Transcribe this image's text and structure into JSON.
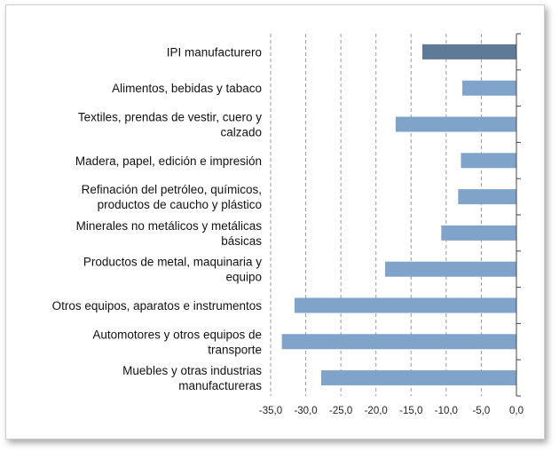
{
  "chart_data": {
    "type": "bar",
    "orientation": "horizontal",
    "categories": [
      [
        "IPI manufacturero"
      ],
      [
        "Alimentos, bebidas y tabaco"
      ],
      [
        "Textiles, prendas de vestir, cuero y",
        "calzado"
      ],
      [
        "Madera, papel, edición e impresión"
      ],
      [
        "Refinación del petróleo, químicos,",
        "productos de caucho y plástico"
      ],
      [
        "Minerales no metálicos y metálicas",
        "básicas"
      ],
      [
        "Productos de metal, maquinaria y",
        "equipo"
      ],
      [
        "Otros equipos, aparatos e instrumentos"
      ],
      [
        "Automotores y otros equipos de",
        "transporte"
      ],
      [
        "Muebles y otras industrias",
        "manufactureras"
      ]
    ],
    "values": [
      -13.4,
      -7.7,
      -17.2,
      -7.9,
      -8.3,
      -10.7,
      -18.7,
      -31.6,
      -33.4,
      -27.8
    ],
    "xlim": [
      -35,
      0
    ],
    "ticks": [
      -35,
      -30,
      -25,
      -20,
      -15,
      -10,
      -5,
      0
    ],
    "tick_labels": [
      "-35,0",
      "-30,0",
      "-25,0",
      "-20,0",
      "-15,0",
      "-10,0",
      "-5,0",
      "0,0"
    ],
    "grid": true,
    "colors": {
      "highlight": "#5f7a99",
      "bar": "#7fa3c9",
      "grid": "#9a9a9a"
    }
  }
}
